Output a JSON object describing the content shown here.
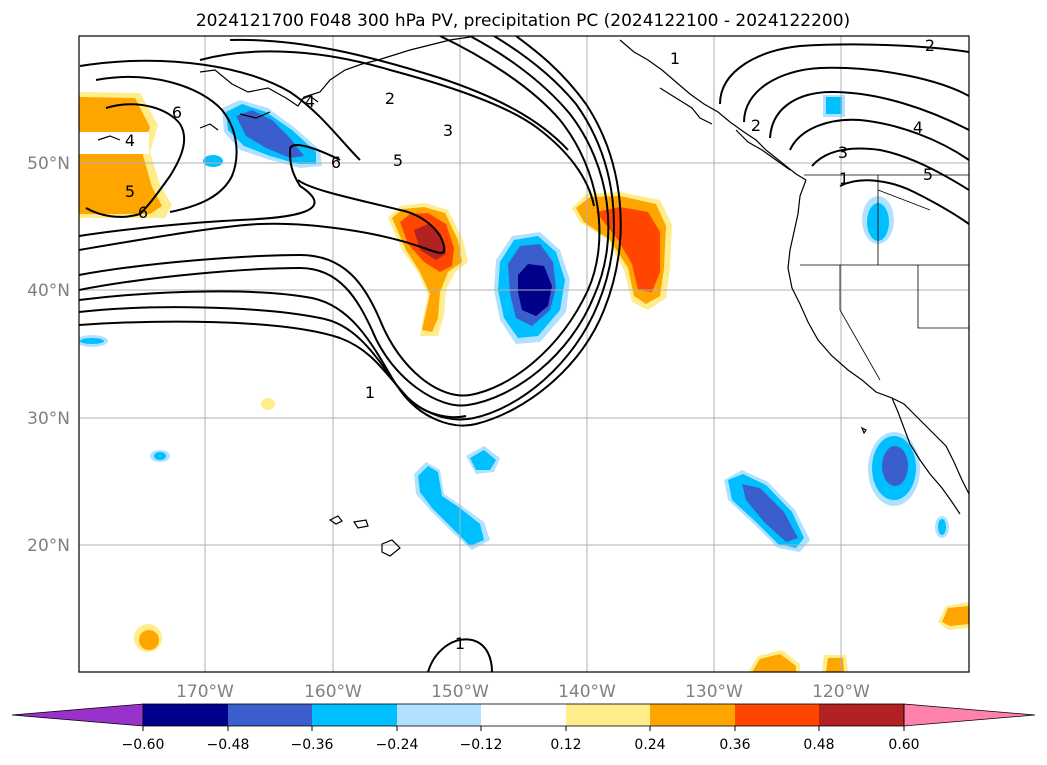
{
  "title": "2024121700 F048 300 hPa PV, precipitation PC (2024122100 - 2024122200)",
  "map": {
    "lon_labels": [
      "170°W",
      "160°W",
      "150°W",
      "140°W",
      "130°W",
      "120°W"
    ],
    "lat_labels": [
      "50°N",
      "40°N",
      "30°N",
      "20°N"
    ],
    "contour_labels": [
      "1",
      "2",
      "3",
      "4",
      "5",
      "6"
    ]
  },
  "colorbar": {
    "tick_labels": [
      "−0.60",
      "−0.48",
      "−0.36",
      "−0.24",
      "−0.12",
      "0.12",
      "0.24",
      "0.36",
      "0.48",
      "0.60"
    ],
    "colors": [
      "#9932cc",
      "#00008b",
      "#3a5fcd",
      "#00bfff",
      "#b0e2ff",
      "#ffffff",
      "#ffec8b",
      "#ffa500",
      "#ff4500",
      "#b22222",
      "#ff82ab"
    ]
  }
}
